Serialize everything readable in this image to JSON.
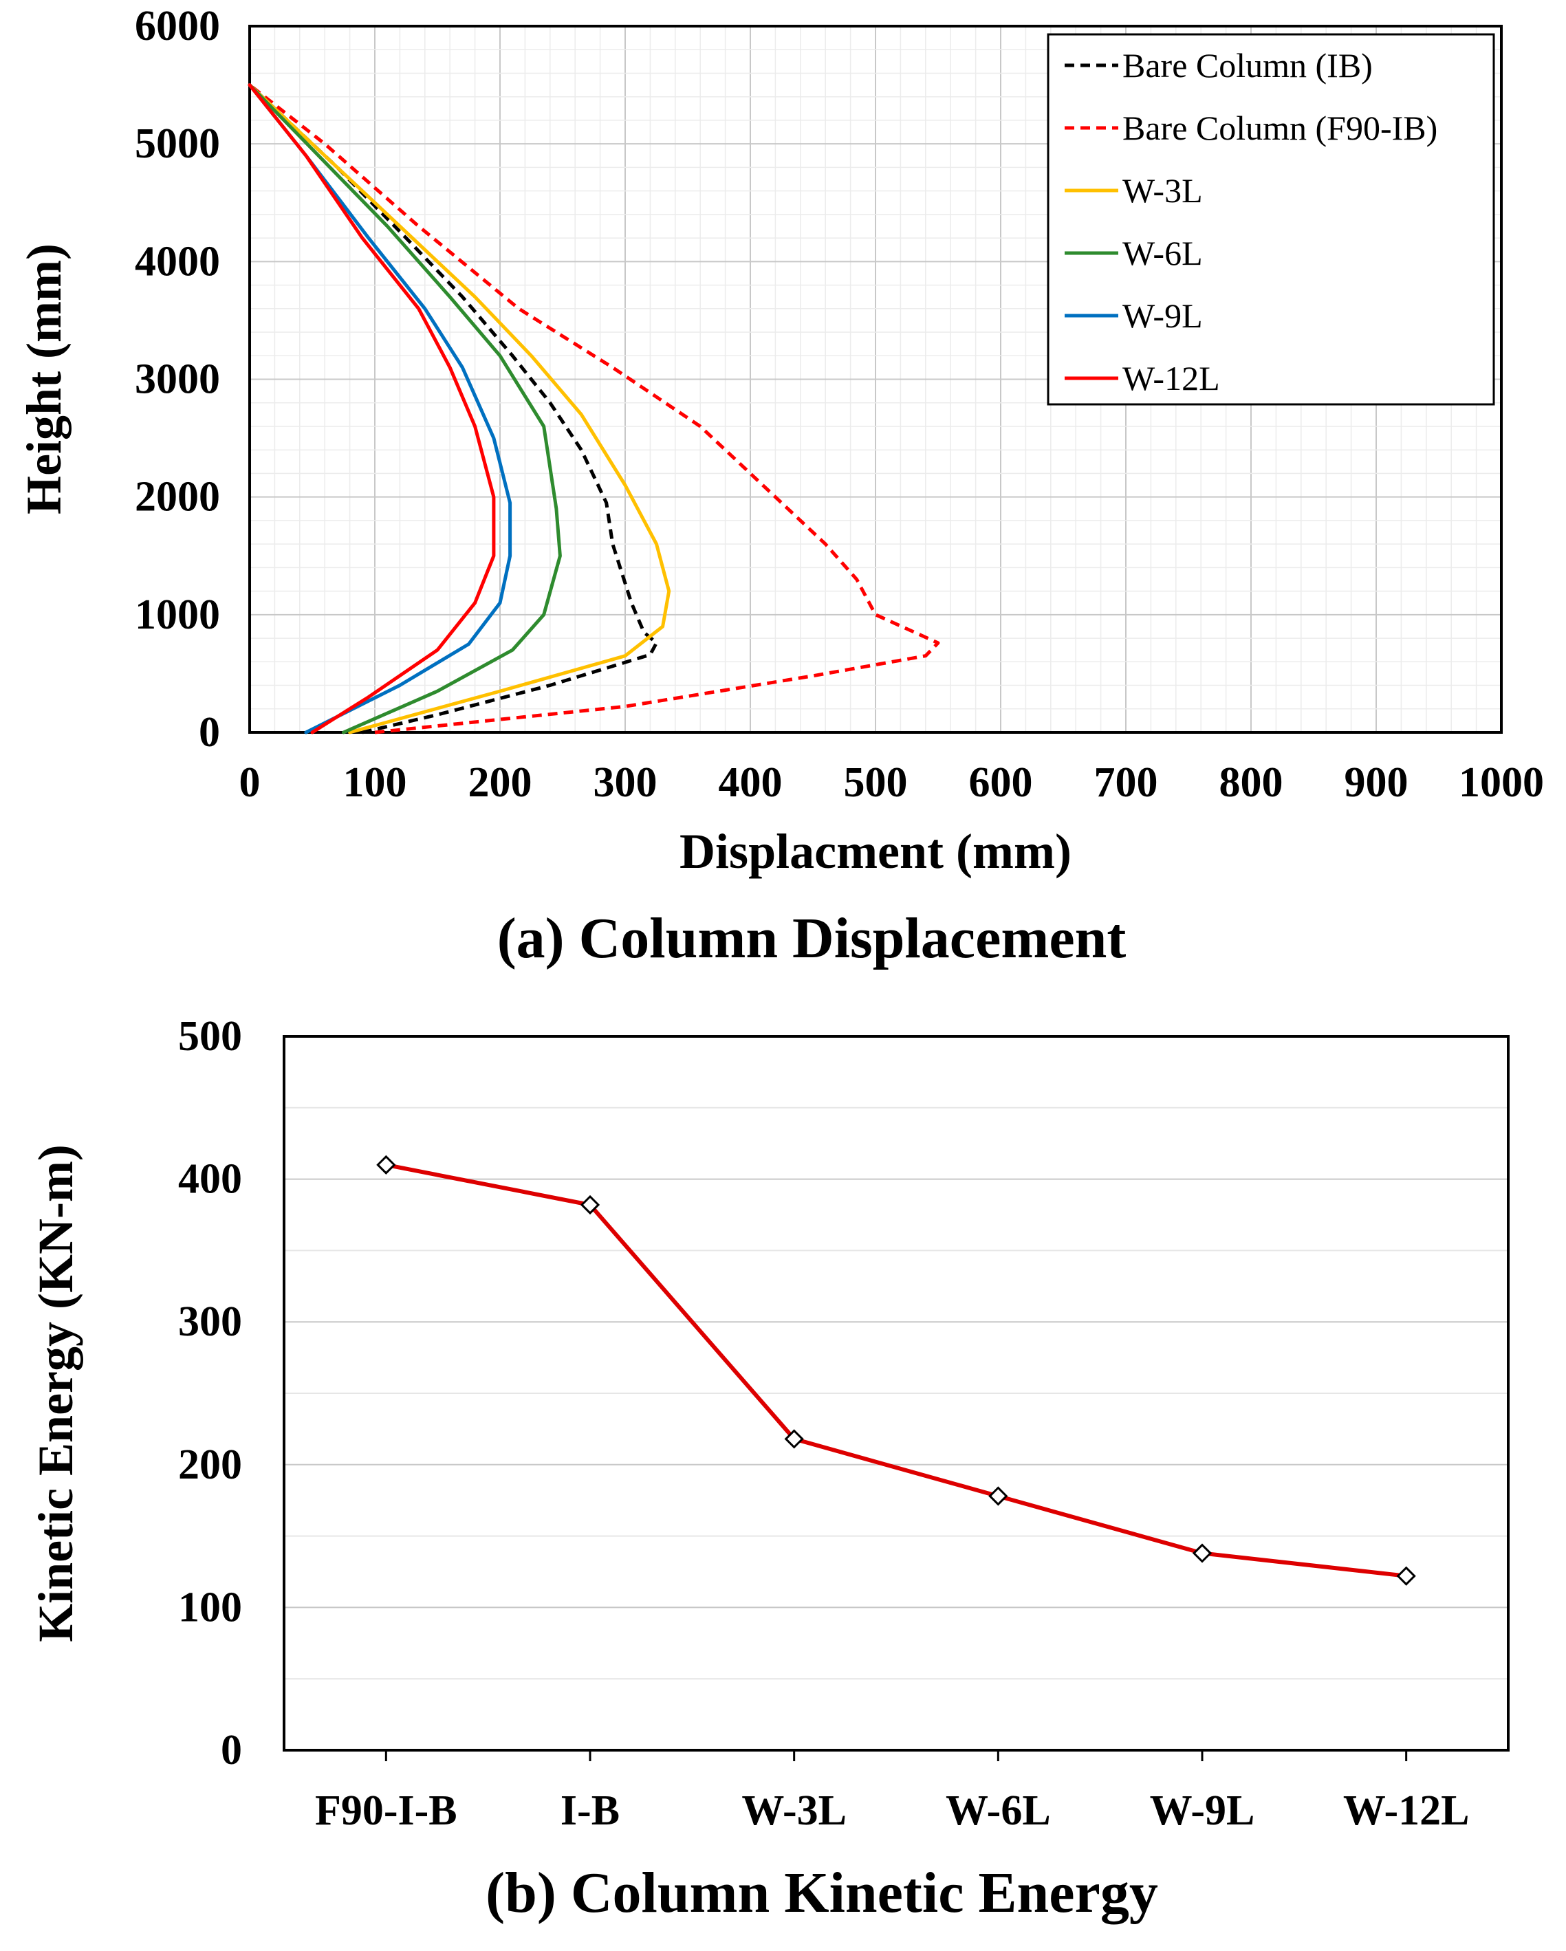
{
  "chart_data": [
    {
      "type": "line",
      "caption": "(a) Column Displacement",
      "xlabel": "Displacment (mm)",
      "ylabel": "Height (mm)",
      "xlim": [
        0,
        1000
      ],
      "ylim": [
        0,
        6000
      ],
      "xticks": [
        "0",
        "100",
        "200",
        "300",
        "400",
        "500",
        "600",
        "700",
        "800",
        "900",
        "1000"
      ],
      "yticks": [
        "0",
        "1000",
        "2000",
        "3000",
        "4000",
        "5000",
        "6000"
      ],
      "grid": true,
      "legend_position": "top-right",
      "series": [
        {
          "name": "Bare Column (IB)",
          "color": "#000000",
          "dash": true,
          "points": [
            [
              90,
              0
            ],
            [
              150,
              150
            ],
            [
              240,
              400
            ],
            [
              320,
              660
            ],
            [
              325,
              760
            ],
            [
              315,
              850
            ],
            [
              305,
              1100
            ],
            [
              290,
              1600
            ],
            [
              285,
              1950
            ],
            [
              265,
              2400
            ],
            [
              240,
              2800
            ],
            [
              210,
              3200
            ],
            [
              170,
              3700
            ],
            [
              125,
              4200
            ],
            [
              70,
              4800
            ],
            [
              0,
              5500
            ]
          ]
        },
        {
          "name": "Bare Column (F90-IB)",
          "color": "#ff0000",
          "dash": true,
          "points": [
            [
              100,
              0
            ],
            [
              300,
              220
            ],
            [
              450,
              480
            ],
            [
              540,
              650
            ],
            [
              550,
              760
            ],
            [
              500,
              1000
            ],
            [
              485,
              1300
            ],
            [
              460,
              1600
            ],
            [
              420,
              2000
            ],
            [
              360,
              2600
            ],
            [
              290,
              3100
            ],
            [
              215,
              3600
            ],
            [
              135,
              4300
            ],
            [
              60,
              5000
            ],
            [
              0,
              5500
            ]
          ]
        },
        {
          "name": "W-3L",
          "color": "#ffc000",
          "dash": false,
          "points": [
            [
              80,
              0
            ],
            [
              200,
              350
            ],
            [
              300,
              650
            ],
            [
              330,
              900
            ],
            [
              335,
              1200
            ],
            [
              325,
              1600
            ],
            [
              300,
              2100
            ],
            [
              265,
              2700
            ],
            [
              225,
              3200
            ],
            [
              180,
              3700
            ],
            [
              120,
              4300
            ],
            [
              60,
              4900
            ],
            [
              0,
              5500
            ]
          ]
        },
        {
          "name": "W-6L",
          "color": "#2e8b2e",
          "dash": false,
          "points": [
            [
              75,
              0
            ],
            [
              150,
              350
            ],
            [
              210,
              700
            ],
            [
              235,
              1000
            ],
            [
              248,
              1500
            ],
            [
              245,
              1900
            ],
            [
              235,
              2600
            ],
            [
              200,
              3200
            ],
            [
              160,
              3700
            ],
            [
              110,
              4300
            ],
            [
              55,
              4900
            ],
            [
              0,
              5500
            ]
          ]
        },
        {
          "name": "W-9L",
          "color": "#0070c0",
          "dash": false,
          "points": [
            [
              45,
              0
            ],
            [
              120,
              400
            ],
            [
              175,
              750
            ],
            [
              200,
              1100
            ],
            [
              208,
              1500
            ],
            [
              208,
              1950
            ],
            [
              195,
              2500
            ],
            [
              170,
              3100
            ],
            [
              140,
              3600
            ],
            [
              95,
              4200
            ],
            [
              45,
              4900
            ],
            [
              0,
              5500
            ]
          ]
        },
        {
          "name": "W-12L",
          "color": "#ff0000",
          "dash": false,
          "points": [
            [
              50,
              0
            ],
            [
              95,
              300
            ],
            [
              150,
              700
            ],
            [
              180,
              1100
            ],
            [
              195,
              1500
            ],
            [
              195,
              2000
            ],
            [
              180,
              2600
            ],
            [
              160,
              3100
            ],
            [
              135,
              3600
            ],
            [
              90,
              4200
            ],
            [
              45,
              4900
            ],
            [
              0,
              5500
            ]
          ]
        }
      ]
    },
    {
      "type": "line",
      "caption": "(b) Column Kinetic Energy",
      "xlabel": "",
      "ylabel": "Kinetic Energy (KN-m)",
      "ylim": [
        0,
        500
      ],
      "yticks": [
        "0",
        "100",
        "200",
        "300",
        "400",
        "500"
      ],
      "grid": true,
      "marker": "diamond",
      "color": "#dd0000",
      "categories": [
        "F90-I-B",
        "I-B",
        "W-3L",
        "W-6L",
        "W-9L",
        "W-12L"
      ],
      "values": [
        410,
        382,
        218,
        178,
        138,
        122
      ]
    }
  ]
}
